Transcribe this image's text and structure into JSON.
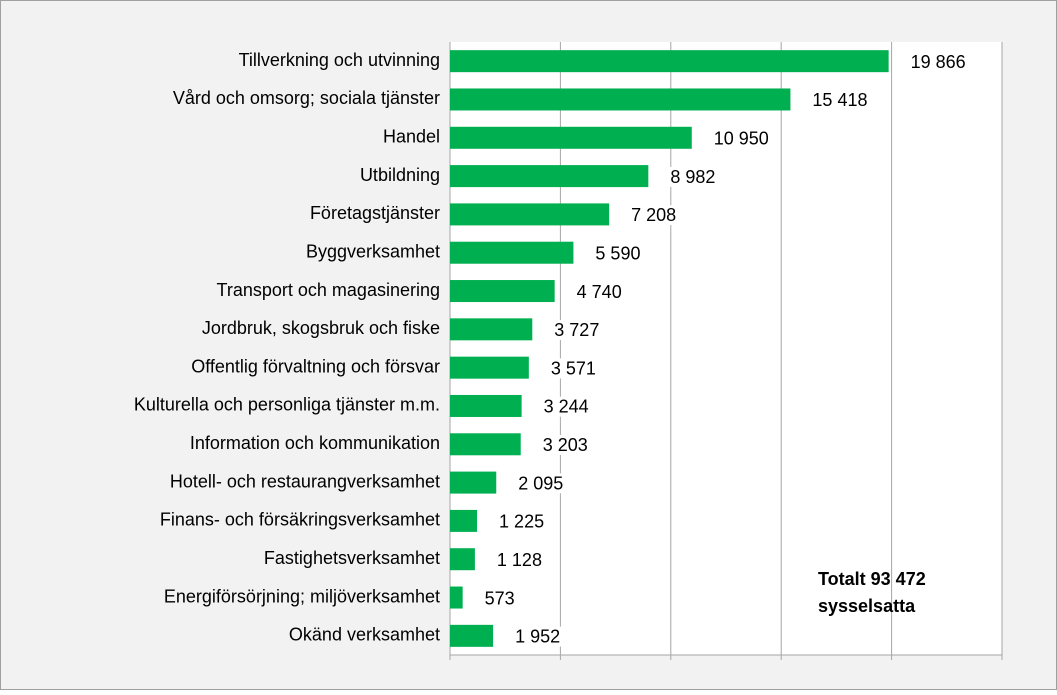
{
  "chart_data": {
    "type": "hbar",
    "categories": [
      "Tillverkning och utvinning",
      "Vård och omsorg; sociala tjänster",
      "Handel",
      "Utbildning ",
      "Företagstjänster",
      "Byggverksamhet",
      "Transport och magasinering",
      "Jordbruk, skogsbruk och fiske",
      "Offentlig förvaltning och försvar",
      "Kulturella och personliga tjänster m.m.",
      "Information och kommunikation",
      "Hotell- och restaurangverksamhet",
      "Finans- och försäkringsverksamhet",
      "Fastighetsverksamhet",
      "Energiförsörjning; miljöverksamhet",
      "Okänd verksamhet"
    ],
    "values": [
      19866,
      15418,
      10950,
      8982,
      7208,
      5590,
      4740,
      3727,
      3571,
      3244,
      3203,
      2095,
      1225,
      1128,
      573,
      1952
    ],
    "value_labels": [
      "19 866",
      "15 418",
      "10 950",
      "8 982",
      "7 208",
      "5 590",
      "4 740",
      "3 727",
      "3 571",
      "3 244",
      "3 203",
      "2 095",
      "1 225",
      "1 128",
      "573",
      "1 952"
    ],
    "color": "#00b050",
    "xlim": [
      0,
      25000
    ],
    "xticks": [
      0,
      5000,
      10000,
      15000,
      20000,
      25000
    ],
    "grid": true,
    "annotation": [
      "Totalt 93 472",
      "sysselsatta"
    ]
  }
}
